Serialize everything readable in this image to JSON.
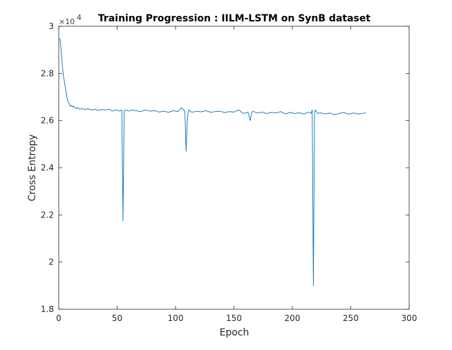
{
  "chart_data": {
    "type": "line",
    "title": "Training Progression : IILM-LSTM on SynB dataset",
    "xlabel": "Epoch",
    "ylabel": "Cross Entropy",
    "exponent_base": "×10",
    "exponent_power": "4",
    "xlim": [
      0,
      300
    ],
    "ylim": [
      1.8,
      3.0
    ],
    "y_scale_factor": 10000,
    "xticks": [
      0,
      50,
      100,
      150,
      200,
      250,
      300
    ],
    "yticks": [
      1.8,
      2.0,
      2.2,
      2.4,
      2.6,
      2.8,
      3.0
    ],
    "xtick_labels": [
      "0",
      "50",
      "100",
      "150",
      "200",
      "250",
      "300"
    ],
    "ytick_labels": [
      "1.8",
      "2",
      "2.2",
      "2.4",
      "2.6",
      "2.8",
      "3"
    ],
    "grid": false,
    "line_color": "#0072bd",
    "series": [
      {
        "x": [
          1,
          2,
          3,
          4,
          5,
          6,
          7,
          8,
          9,
          10,
          11,
          12,
          13,
          14,
          15,
          16,
          18,
          20,
          22,
          25,
          28,
          31,
          34,
          37,
          40,
          43,
          46,
          49,
          52,
          54,
          55,
          56,
          57,
          60,
          63,
          66,
          70,
          74,
          78,
          82,
          86,
          90,
          94,
          98,
          102,
          105,
          108,
          109,
          110,
          111,
          114,
          118,
          122,
          126,
          130,
          134,
          138,
          142,
          146,
          150,
          154,
          158,
          162,
          164,
          165,
          166,
          170,
          174,
          178,
          182,
          186,
          190,
          194,
          198,
          202,
          206,
          210,
          214,
          216,
          217,
          218,
          219,
          220,
          221,
          222,
          224,
          228,
          232,
          236,
          240,
          244,
          248,
          252,
          256,
          260,
          263
        ],
        "y": [
          2.95,
          2.9,
          2.84,
          2.79,
          2.76,
          2.73,
          2.7,
          2.68,
          2.67,
          2.66,
          2.665,
          2.658,
          2.66,
          2.655,
          2.65,
          2.655,
          2.648,
          2.652,
          2.646,
          2.65,
          2.645,
          2.648,
          2.643,
          2.647,
          2.645,
          2.648,
          2.64,
          2.646,
          2.64,
          2.645,
          2.175,
          2.64,
          2.645,
          2.64,
          2.645,
          2.642,
          2.638,
          2.645,
          2.64,
          2.642,
          2.636,
          2.64,
          2.635,
          2.642,
          2.638,
          2.655,
          2.64,
          2.47,
          2.6,
          2.645,
          2.635,
          2.64,
          2.637,
          2.642,
          2.635,
          2.638,
          2.64,
          2.634,
          2.638,
          2.636,
          2.645,
          2.63,
          2.635,
          2.6,
          2.63,
          2.64,
          2.632,
          2.636,
          2.63,
          2.635,
          2.632,
          2.638,
          2.628,
          2.635,
          2.63,
          2.633,
          2.628,
          2.636,
          2.63,
          2.645,
          1.9,
          2.64,
          2.645,
          2.635,
          2.63,
          2.633,
          2.628,
          2.632,
          2.625,
          2.63,
          2.635,
          2.627,
          2.632,
          2.628,
          2.63,
          2.633
        ]
      }
    ]
  }
}
